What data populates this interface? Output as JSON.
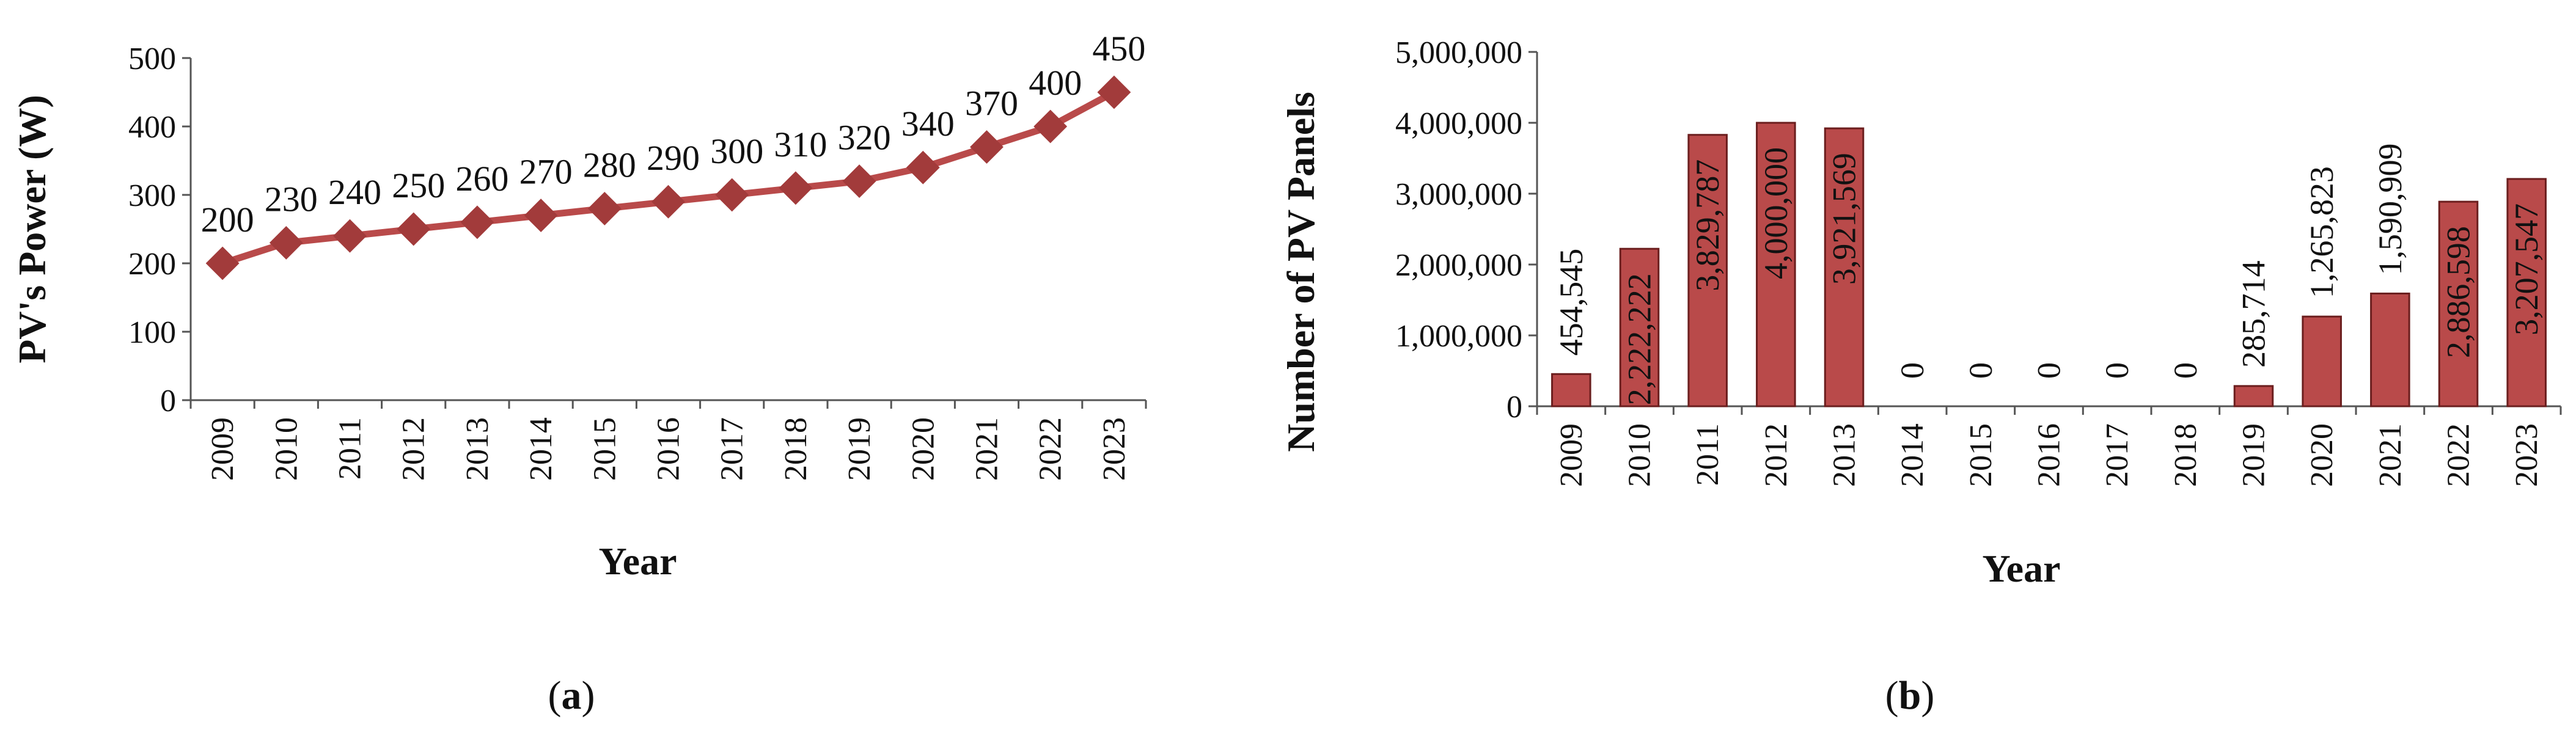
{
  "colors": {
    "series": "#B94A4A",
    "marker": "#A23B3B",
    "bar_stroke": "#6B1E1E",
    "axis": "#555555",
    "text": "#111111"
  },
  "chart_data": [
    {
      "type": "line",
      "caption": "(a)",
      "caption_letter": "a",
      "title": "",
      "xlabel": "Year",
      "ylabel": "PV's Power (W)",
      "categories": [
        "2009",
        "2010",
        "2011",
        "2012",
        "2013",
        "2014",
        "2015",
        "2016",
        "2017",
        "2018",
        "2019",
        "2020",
        "2021",
        "2022",
        "2023"
      ],
      "values": [
        200,
        230,
        240,
        250,
        260,
        270,
        280,
        290,
        300,
        310,
        320,
        340,
        370,
        400,
        450
      ],
      "data_labels": [
        "200",
        "230",
        "240",
        "250",
        "260",
        "270",
        "280",
        "290",
        "300",
        "310",
        "320",
        "340",
        "370",
        "400",
        "450"
      ],
      "ylim": [
        0,
        500
      ],
      "yticks": [
        0,
        100,
        200,
        300,
        400,
        500
      ],
      "ytick_labels": [
        "0",
        "100",
        "200",
        "300",
        "400",
        "500"
      ],
      "marker": "diamond",
      "grid": false,
      "legend": "none"
    },
    {
      "type": "bar",
      "caption": "(b)",
      "caption_letter": "b",
      "title": "",
      "xlabel": "Year",
      "ylabel": "Number of PV Panels",
      "categories": [
        "2009",
        "2010",
        "2011",
        "2012",
        "2013",
        "2014",
        "2015",
        "2016",
        "2017",
        "2018",
        "2019",
        "2020",
        "2021",
        "2022",
        "2023"
      ],
      "values": [
        454545,
        2222222,
        3829787,
        4000000,
        3921569,
        0,
        0,
        0,
        0,
        0,
        285714,
        1265823,
        1590909,
        2886598,
        3207547
      ],
      "data_labels": [
        "454,545",
        "2,222,222",
        "3,829,787",
        "4,000,000",
        "3,921,569",
        "0",
        "0",
        "0",
        "0",
        "0",
        "285,714",
        "1,265,823",
        "1,590,909",
        "2,886,598",
        "3,207,547"
      ],
      "ylim": [
        0,
        5000000
      ],
      "yticks": [
        0,
        1000000,
        2000000,
        3000000,
        4000000,
        5000000
      ],
      "ytick_labels": [
        "0",
        "1,000,000",
        "2,000,000",
        "3,000,000",
        "4,000,000",
        "5,000,000"
      ],
      "grid": false,
      "legend": "none"
    }
  ]
}
